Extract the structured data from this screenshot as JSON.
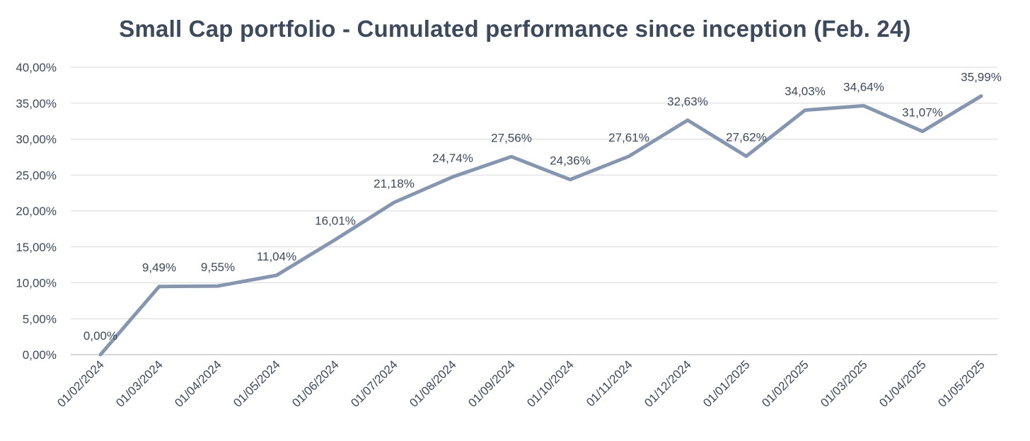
{
  "chart_data": {
    "type": "line",
    "title": "Small Cap portfolio - Cumulated performance since inception (Feb. 24)",
    "xlabel": "",
    "ylabel": "",
    "categories": [
      "01/02/2024",
      "01/03/2024",
      "01/04/2024",
      "01/05/2024",
      "01/06/2024",
      "01/07/2024",
      "01/08/2024",
      "01/09/2024",
      "01/10/2024",
      "01/11/2024",
      "01/12/2024",
      "01/01/2025",
      "01/02/2025",
      "01/03/2025",
      "01/04/2025",
      "01/05/2025"
    ],
    "series": [
      {
        "values": [
          0.0,
          9.49,
          9.55,
          11.04,
          16.01,
          21.18,
          24.74,
          27.56,
          24.36,
          27.61,
          32.63,
          27.62,
          34.03,
          34.64,
          31.07,
          35.99
        ],
        "data_labels": [
          "0,00%",
          "9,49%",
          "9,55%",
          "11,04%",
          "16,01%",
          "21,18%",
          "24,74%",
          "27,56%",
          "24,36%",
          "27,61%",
          "32,63%",
          "27,62%",
          "34,03%",
          "34,64%",
          "31,07%",
          "35,99%"
        ],
        "color": "#8496b0"
      }
    ],
    "ylim": [
      0,
      40
    ],
    "yticks": [
      0,
      5,
      10,
      15,
      20,
      25,
      30,
      35,
      40
    ],
    "ytick_labels": [
      "0,00%",
      "5,00%",
      "10,00%",
      "15,00%",
      "20,00%",
      "25,00%",
      "30,00%",
      "35,00%",
      "40,00%"
    ],
    "grid": true,
    "legend": "none",
    "colors": {
      "line": "#8496b0",
      "text": "#3c4a5e",
      "grid": "#d9d9d9"
    }
  }
}
